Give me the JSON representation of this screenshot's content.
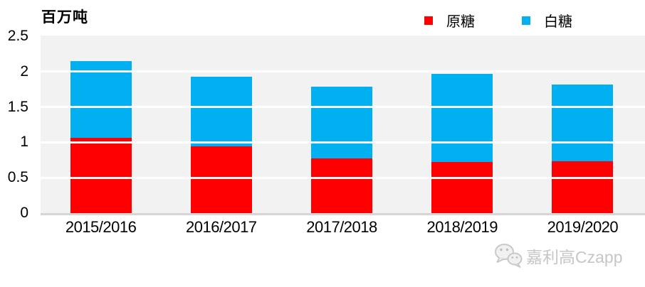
{
  "header": {
    "unit_label": "百万吨",
    "watermark": "© CZapp"
  },
  "legend": {
    "items": [
      {
        "label": "原糖",
        "color": "#FF0000"
      },
      {
        "label": "白糖",
        "color": "#00B0F0"
      }
    ]
  },
  "footer": {
    "brand_text": "嘉利高Czapp",
    "icon": "wechat-icon"
  },
  "colors": {
    "raw_sugar_red": "#FF0000",
    "white_sugar_blue": "#00B0F0",
    "plot_background": "#F2F2F2",
    "gridline": "#FFFFFF",
    "axis_line": "#D6D6D6",
    "brand_watermark_gray": "#C6C6C6"
  },
  "chart_data": {
    "type": "bar",
    "stacked": true,
    "title": "",
    "unit_label": "百万吨",
    "categories": [
      "2015/2016",
      "2016/2017",
      "2017/2018",
      "2018/2019",
      "2019/2020"
    ],
    "series": [
      {
        "name": "原糖",
        "color": "#FF0000",
        "values": [
          1.06,
          0.94,
          0.77,
          0.72,
          0.73
        ]
      },
      {
        "name": "白糖",
        "color": "#00B0F0",
        "values": [
          1.09,
          0.99,
          1.02,
          1.25,
          1.09
        ]
      }
    ],
    "totals": [
      2.15,
      1.93,
      1.79,
      1.97,
      1.82
    ],
    "xlabel": "",
    "ylabel": "百万吨",
    "ylim": [
      0,
      2.5
    ],
    "yticks": [
      0,
      0.5,
      1,
      1.5,
      2,
      2.5
    ],
    "grid": true,
    "legend_position": "top-right"
  }
}
